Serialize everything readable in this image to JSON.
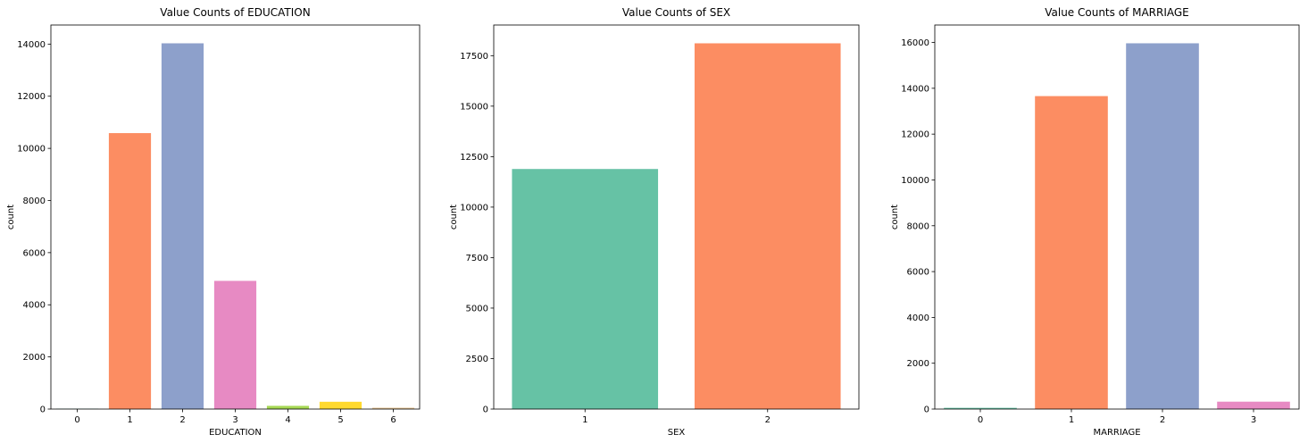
{
  "chart_data": [
    {
      "type": "bar",
      "title": "Value Counts of EDUCATION",
      "xlabel": "EDUCATION",
      "ylabel": "count",
      "categories": [
        "0",
        "1",
        "2",
        "3",
        "4",
        "5",
        "6"
      ],
      "values": [
        14,
        10585,
        14030,
        4917,
        123,
        280,
        51
      ],
      "ylim": [
        0,
        14732
      ],
      "yticks": [
        0,
        2000,
        4000,
        6000,
        8000,
        10000,
        12000,
        14000
      ],
      "colors": [
        "#66c2a5",
        "#fc8d62",
        "#8da0cb",
        "#e78ac3",
        "#a6d854",
        "#ffd92f",
        "#e5c494"
      ]
    },
    {
      "type": "bar",
      "title": "Value Counts of SEX",
      "xlabel": "SEX",
      "ylabel": "count",
      "categories": [
        "1",
        "2"
      ],
      "values": [
        11888,
        18112
      ],
      "ylim": [
        0,
        19018
      ],
      "yticks": [
        0,
        2500,
        5000,
        7500,
        10000,
        12500,
        15000,
        17500
      ],
      "colors": [
        "#66c2a5",
        "#fc8d62"
      ]
    },
    {
      "type": "bar",
      "title": "Value Counts of MARRIAGE",
      "xlabel": "MARRIAGE",
      "ylabel": "count",
      "categories": [
        "0",
        "1",
        "2",
        "3"
      ],
      "values": [
        54,
        13659,
        15964,
        323
      ],
      "ylim": [
        0,
        16762
      ],
      "yticks": [
        0,
        2000,
        4000,
        6000,
        8000,
        10000,
        12000,
        14000,
        16000
      ],
      "colors": [
        "#66c2a5",
        "#fc8d62",
        "#8da0cb",
        "#e78ac3"
      ]
    }
  ]
}
